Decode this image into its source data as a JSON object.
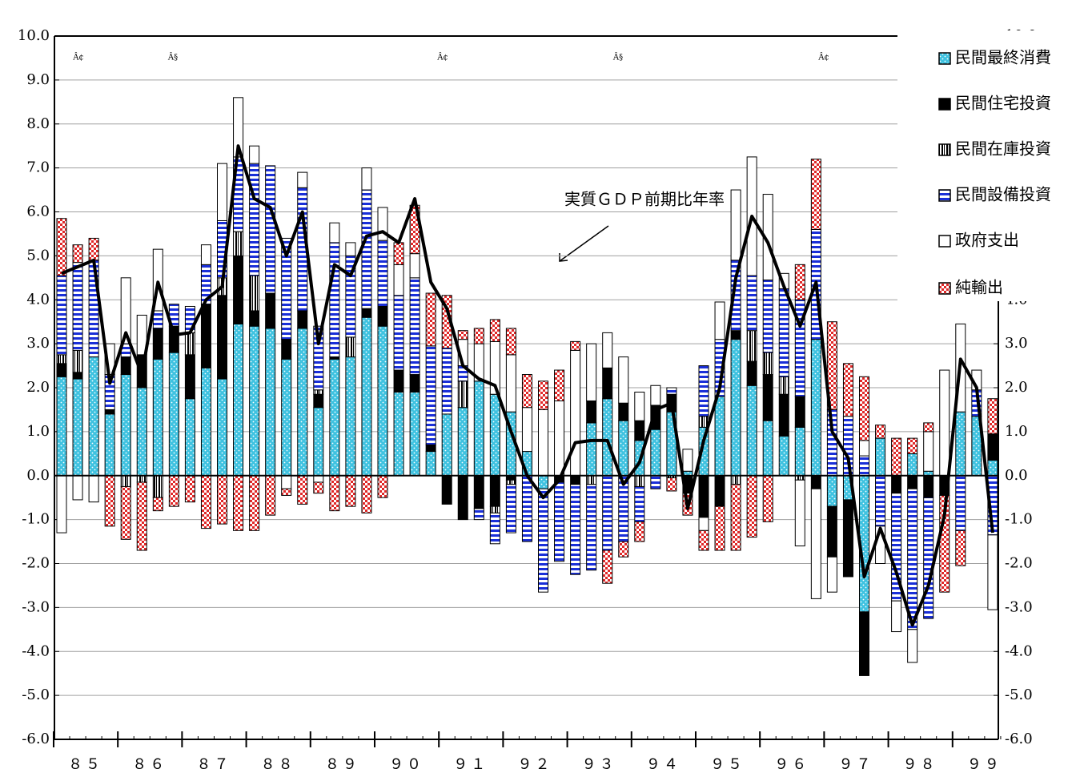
{
  "chart_data": {
    "type": "stacked-bar-line",
    "marks": [
      "Â¢",
      "Â§",
      "Â¢",
      "Â§",
      "Â¢"
    ],
    "x_labels": [
      "８５",
      "８６",
      "８７",
      "８８",
      "８９",
      "９０",
      "９１",
      "９２",
      "９３",
      "９４",
      "９５",
      "９６",
      "９７",
      "９８",
      "９９"
    ],
    "ylim": [
      -6,
      10
    ],
    "yticks": [
      {
        "value": 10,
        "label": "10.0"
      },
      {
        "value": 9,
        "label": "9.0"
      },
      {
        "value": 8,
        "label": "8.0"
      },
      {
        "value": 7,
        "label": "7.0"
      },
      {
        "value": 6,
        "label": "6.0"
      },
      {
        "value": 5,
        "label": "5.0"
      },
      {
        "value": 4,
        "label": "4.0"
      },
      {
        "value": 3,
        "label": "3.0"
      },
      {
        "value": 2,
        "label": "2.0"
      },
      {
        "value": 1,
        "label": "1.0"
      },
      {
        "value": 0,
        "label": "0.0"
      },
      {
        "value": -1,
        "label": "-1.0"
      },
      {
        "value": -2,
        "label": "-2.0"
      },
      {
        "value": -3,
        "label": "-3.0"
      },
      {
        "value": -4,
        "label": "-4.0"
      },
      {
        "value": -5,
        "label": "-5.0"
      },
      {
        "value": -6,
        "label": "-6.0"
      }
    ],
    "grid": true,
    "series": [
      {
        "name": "民間最終消費",
        "color": "#3fc2e0",
        "values": [
          2.25,
          2.2,
          2.7,
          1.4,
          2.3,
          2.0,
          2.65,
          2.8,
          1.75,
          2.45,
          2.2,
          3.45,
          3.4,
          3.35,
          2.65,
          3.35,
          1.55,
          2.65,
          2.7,
          3.6,
          3.4,
          1.9,
          1.9,
          0.55,
          1.4,
          1.55,
          2.15,
          1.85,
          1.45,
          0.55,
          -0.3,
          0,
          0,
          1.2,
          1.75,
          1.25,
          0.8,
          1.05,
          1.45,
          0.1,
          1.1,
          1.8,
          3.1,
          2.05,
          1.25,
          0.9,
          1.1,
          3.1,
          -0.7,
          -0.55,
          -3.1,
          0.85,
          0,
          0.5,
          0.1,
          0,
          1.45,
          1.35,
          0.35
        ]
      },
      {
        "name": "民間住宅投資",
        "color": "#000000",
        "values": [
          0.3,
          0.15,
          0,
          0.1,
          0.4,
          0.75,
          0.7,
          0.6,
          1.0,
          1.45,
          1.9,
          1.55,
          0.35,
          0.8,
          0.45,
          0.4,
          0.3,
          0.05,
          0,
          0.2,
          0.45,
          0.5,
          0.4,
          0.15,
          -0.65,
          -1.0,
          -0.75,
          -0.7,
          -0.1,
          0,
          0,
          -0.15,
          -0.2,
          0.5,
          0.7,
          0.4,
          0.45,
          0.55,
          0.4,
          -0.4,
          -0.95,
          -0.7,
          0.2,
          0.55,
          1.05,
          0.95,
          0.7,
          -0.3,
          -1.15,
          -1.75,
          -1.45,
          0,
          -0.4,
          -0.3,
          -0.5,
          -0.45,
          0,
          0,
          0.6
        ]
      },
      {
        "name": "民間在庫投資",
        "color": "#000000",
        "values": [
          0.2,
          0.5,
          0,
          0,
          -0.25,
          -0.15,
          -0.5,
          0,
          0.5,
          0,
          0.4,
          0.55,
          0.8,
          0,
          0,
          0,
          0.1,
          0,
          0.45,
          0,
          0,
          0,
          0,
          0,
          0,
          0.6,
          0,
          -0.15,
          -0.1,
          0,
          0,
          0,
          0,
          -0.2,
          0,
          0,
          -0.25,
          0,
          -0.05,
          0,
          0.25,
          0,
          -0.2,
          0.7,
          0.5,
          0.4,
          -0.1,
          0,
          0,
          0,
          0,
          0,
          0,
          0,
          0,
          0,
          0,
          0,
          0
        ]
      },
      {
        "name": "民間設備投資",
        "color": "#1a2fd8",
        "values": [
          1.8,
          2.0,
          2.2,
          0.8,
          0.3,
          0,
          0.4,
          0.5,
          0.6,
          0.9,
          1.3,
          1.7,
          2.55,
          2.9,
          2.3,
          2.8,
          1.45,
          2.6,
          1.85,
          2.7,
          1.5,
          1.7,
          2.2,
          2.25,
          1.5,
          0.35,
          -0.25,
          -0.7,
          -1.1,
          -1.5,
          -2.35,
          -1.8,
          -2.05,
          -1.95,
          -1.7,
          -1.5,
          -0.8,
          -0.3,
          0.15,
          0,
          1.15,
          1.3,
          1.6,
          1.25,
          1.65,
          2.0,
          2.2,
          2.5,
          1.5,
          1.35,
          0.45,
          -1.15,
          -2.45,
          -3.2,
          -2.75,
          0,
          -1.25,
          0.6,
          -1.35
        ]
      },
      {
        "name": "政府支出",
        "color": "#ffffff",
        "values": [
          -1.3,
          -0.55,
          -0.6,
          0.7,
          1.5,
          0.9,
          1.4,
          0,
          0,
          0.45,
          1.3,
          1.35,
          0.4,
          0,
          -0.3,
          0.35,
          -0.15,
          0.45,
          0.3,
          0.5,
          0.75,
          0.7,
          0.55,
          0,
          0,
          0.6,
          0.85,
          1.2,
          1.3,
          1.0,
          1.5,
          1.7,
          2.85,
          1.3,
          0.8,
          1.05,
          0.65,
          0.45,
          0,
          0.5,
          -0.3,
          0.85,
          1.6,
          2.7,
          1.95,
          0.35,
          -1.5,
          -2.5,
          -0.8,
          0,
          0.35,
          -0.85,
          -0.7,
          -0.75,
          0.9,
          2.4,
          2.0,
          0.45,
          -1.7
        ]
      },
      {
        "name": "純輸出",
        "color": "#e02828",
        "values": [
          1.3,
          0.4,
          0.5,
          -1.15,
          -1.2,
          -1.55,
          -0.3,
          -0.7,
          -0.6,
          -1.2,
          -1.1,
          -1.25,
          -1.25,
          -0.9,
          -0.15,
          -0.65,
          -0.25,
          -0.8,
          -0.7,
          -0.85,
          -0.5,
          0.5,
          1.1,
          1.2,
          1.2,
          0.2,
          0.35,
          0.5,
          0.6,
          0.75,
          0.65,
          0.7,
          0.2,
          0,
          -0.75,
          -0.35,
          -0.45,
          0,
          -0.3,
          -0.5,
          -0.45,
          -1.0,
          -1.5,
          -1.4,
          -1.05,
          0,
          0.8,
          1.6,
          2.0,
          1.2,
          1.45,
          0.3,
          0.85,
          0.35,
          0.2,
          -2.2,
          -0.8,
          0,
          0.8
        ]
      }
    ],
    "line": {
      "name": "実質ＧＤＰ前期比年率",
      "color": "#000000",
      "values": [
        4.6,
        4.75,
        4.9,
        2.1,
        3.25,
        2.3,
        4.4,
        3.2,
        3.25,
        4.0,
        4.3,
        7.5,
        6.3,
        6.1,
        5.0,
        6.0,
        3.0,
        4.8,
        4.55,
        5.45,
        5.55,
        5.3,
        6.3,
        4.4,
        3.8,
        2.5,
        2.2,
        2.05,
        1.0,
        0.0,
        -0.5,
        -0.1,
        0.75,
        0.8,
        0.8,
        -0.2,
        0.3,
        1.5,
        1.65,
        -0.75,
        0.8,
        2.0,
        4.5,
        5.9,
        5.3,
        4.3,
        3.4,
        4.4,
        1.0,
        0.4,
        -2.3,
        -1.2,
        -2.2,
        -3.4,
        -2.5,
        -0.9,
        2.65,
        2.0,
        -1.3
      ]
    }
  }
}
